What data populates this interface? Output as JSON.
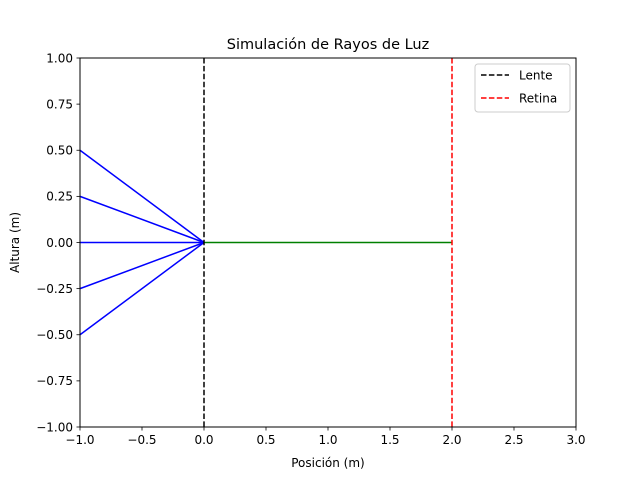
{
  "chart_data": {
    "type": "line",
    "title": "Simulación de Rayos de Luz",
    "xlabel": "Posición (m)",
    "ylabel": "Altura (m)",
    "xlim": [
      -1.0,
      3.0
    ],
    "ylim": [
      -1.0,
      1.0
    ],
    "xticks": [
      -1.0,
      -0.5,
      0.0,
      0.5,
      1.0,
      1.5,
      2.0,
      2.5,
      3.0
    ],
    "xtick_labels": [
      "−1.0",
      "−0.5",
      "0.0",
      "0.5",
      "1.0",
      "1.5",
      "2.0",
      "2.5",
      "3.0"
    ],
    "yticks": [
      1.0,
      0.75,
      0.5,
      0.25,
      0.0,
      -0.25,
      -0.5,
      -0.75,
      -1.0
    ],
    "ytick_labels": [
      "1.00",
      "0.75",
      "0.50",
      "0.25",
      "0.00",
      "−0.25",
      "−0.50",
      "−0.75",
      "−1.00"
    ],
    "grid": false,
    "legend_position": "top-right",
    "incident_rays": {
      "color": "#0000ff",
      "rays": [
        {
          "x": [
            -1.0,
            0.0
          ],
          "y": [
            0.5,
            0.0
          ]
        },
        {
          "x": [
            -1.0,
            0.0
          ],
          "y": [
            0.25,
            0.0
          ]
        },
        {
          "x": [
            -1.0,
            0.0
          ],
          "y": [
            0.0,
            0.0
          ]
        },
        {
          "x": [
            -1.0,
            0.0
          ],
          "y": [
            -0.25,
            0.0
          ]
        },
        {
          "x": [
            -1.0,
            0.0
          ],
          "y": [
            -0.5,
            0.0
          ]
        }
      ]
    },
    "refracted_ray": {
      "color": "#008000",
      "x": [
        0.0,
        2.0
      ],
      "y": [
        0.0,
        0.0
      ]
    },
    "vertical_lines": [
      {
        "name": "Lente",
        "x": 0.0,
        "color": "#000000",
        "style": "dashed"
      },
      {
        "name": "Retina",
        "x": 2.0,
        "color": "#ff0000",
        "style": "dashed"
      }
    ]
  }
}
